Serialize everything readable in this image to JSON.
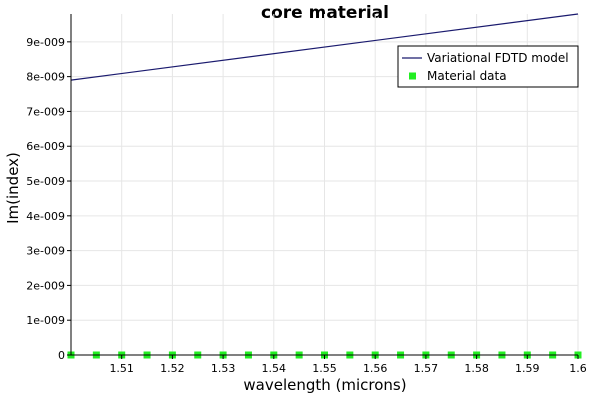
{
  "chart_data": {
    "type": "line",
    "title": "core material",
    "xlabel": "wavelength (microns)",
    "ylabel": "Im(index)",
    "xlim": [
      1.5,
      1.6
    ],
    "ylim": [
      0,
      9.8e-09
    ],
    "x_ticks": [
      1.51,
      1.52,
      1.53,
      1.54,
      1.55,
      1.56,
      1.57,
      1.58,
      1.59,
      1.6
    ],
    "x_tick_labels": [
      "1.51",
      "1.52",
      "1.53",
      "1.54",
      "1.55",
      "1.56",
      "1.57",
      "1.58",
      "1.59",
      "1.6"
    ],
    "y_ticks": [
      0,
      1e-09,
      2e-09,
      3e-09,
      4e-09,
      5e-09,
      6e-09,
      7e-09,
      8e-09,
      9e-09
    ],
    "y_tick_labels": [
      "0",
      "1e-009",
      "2e-009",
      "3e-009",
      "4e-009",
      "5e-009",
      "6e-009",
      "7e-009",
      "8e-009",
      "9e-009"
    ],
    "grid": true,
    "legend_position": "top-right",
    "series": [
      {
        "name": "Variational FDTD model",
        "type": "line",
        "color": "#1a1a6e",
        "x": [
          1.5,
          1.6
        ],
        "y": [
          7.9e-09,
          9.8e-09
        ]
      },
      {
        "name": "Material data",
        "type": "scatter",
        "color": "#22ee22",
        "x": [
          1.5,
          1.505,
          1.51,
          1.515,
          1.52,
          1.525,
          1.53,
          1.535,
          1.54,
          1.545,
          1.55,
          1.555,
          1.56,
          1.565,
          1.57,
          1.575,
          1.58,
          1.585,
          1.59,
          1.595,
          1.6
        ],
        "y": [
          0,
          0,
          0,
          0,
          0,
          0,
          0,
          0,
          0,
          0,
          0,
          0,
          0,
          0,
          0,
          0,
          0,
          0,
          0,
          0,
          0
        ]
      }
    ]
  }
}
